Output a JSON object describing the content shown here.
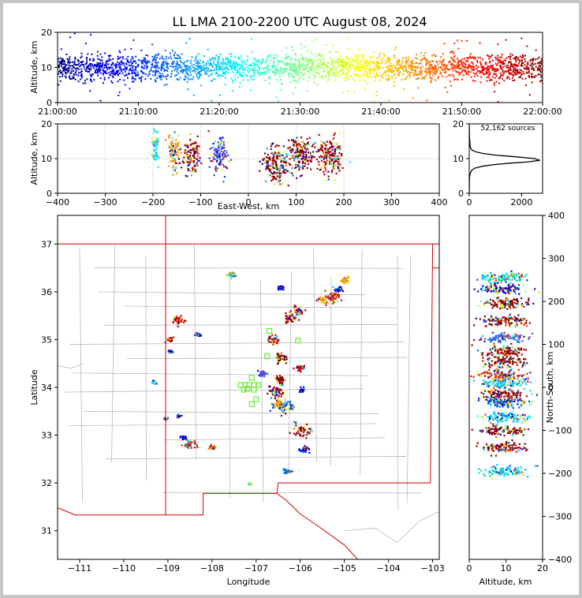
{
  "window": {
    "frame_color": "#c6c6c6"
  },
  "chart_data": [
    {
      "type": "scatter",
      "panel": "time-altitude",
      "title": "LL LMA 2100-2200 UTC August 08, 2024",
      "ylabel": "Altitude, km",
      "xlabel": "",
      "xlim": [
        "21:00:00",
        "22:00:00"
      ],
      "ylim": [
        0,
        20
      ],
      "xticks": [
        "21:00:00",
        "21:10:00",
        "21:20:00",
        "21:30:00",
        "21:40:00",
        "21:50:00",
        "22:00:00"
      ],
      "yticks": [
        0,
        10,
        20
      ],
      "colormap": "jet (by time)",
      "altitude_band_km": [
        5,
        15
      ]
    },
    {
      "type": "scatter",
      "panel": "east-west-altitude",
      "xlabel": "East-West, km",
      "ylabel": "Altitude, km",
      "xlim": [
        -400,
        400
      ],
      "ylim": [
        0,
        20
      ],
      "xticks": [
        -400,
        -300,
        -200,
        -100,
        0,
        100,
        200,
        300,
        400
      ],
      "yticks": [
        0,
        10,
        20
      ],
      "grid": true,
      "clusters": [
        {
          "ew_km": -195,
          "width_km": 10,
          "alt_km": 13,
          "color": "#00e5ff"
        },
        {
          "ew_km": -155,
          "width_km": 15,
          "alt_km": 12,
          "color": "#ff8c00"
        },
        {
          "ew_km": -120,
          "width_km": 20,
          "alt_km": 11,
          "color": "#a00000"
        },
        {
          "ew_km": -60,
          "width_km": 20,
          "alt_km": 11,
          "color": "#4040ff"
        },
        {
          "ew_km": 60,
          "width_km": 30,
          "alt_km": 8,
          "color": "#8b0000"
        },
        {
          "ew_km": 110,
          "width_km": 30,
          "alt_km": 11,
          "color": "#8b0000"
        },
        {
          "ew_km": 170,
          "width_km": 30,
          "alt_km": 11,
          "color": "#b00000"
        }
      ]
    },
    {
      "type": "line",
      "panel": "altitude-histogram",
      "annotation": "52,162 sources",
      "xlim": [
        0,
        2800
      ],
      "ylim": [
        0,
        20
      ],
      "xticks": [
        0,
        2000
      ],
      "yticks": [
        0,
        10,
        20
      ],
      "x": [
        0,
        10,
        30,
        80,
        200,
        500,
        1000,
        1600,
        2200,
        2700,
        2500,
        1800,
        1000,
        500,
        220,
        100,
        50,
        30,
        20,
        10,
        5,
        0
      ],
      "y": [
        0,
        4.5,
        5.5,
        6.5,
        7.2,
        7.8,
        8.3,
        8.7,
        9.0,
        9.5,
        10.0,
        10.5,
        11.0,
        11.5,
        12.0,
        12.5,
        13.0,
        14.0,
        15.0,
        16.0,
        18.0,
        20.0
      ]
    },
    {
      "type": "map",
      "panel": "plan-view",
      "xlabel": "Longitude",
      "ylabel": "Latitude",
      "xlim": [
        -111.5,
        -102.85
      ],
      "ylim": [
        30.4,
        37.6
      ],
      "xticks": [
        -111,
        -110,
        -109,
        -108,
        -107,
        -106,
        -105,
        -104,
        -103
      ],
      "yticks": [
        31,
        32,
        33,
        34,
        35,
        36,
        37
      ],
      "state_border_color": "#d00000",
      "county_border_color": "#b0b0b0",
      "station_color": "#66ee33",
      "stations": [
        [
          -107.35,
          34.05
        ],
        [
          -107.25,
          34.05
        ],
        [
          -107.2,
          33.97
        ],
        [
          -107.15,
          34.05
        ],
        [
          -107.1,
          34.2
        ],
        [
          -107.05,
          34.05
        ],
        [
          -107.05,
          33.95
        ],
        [
          -106.95,
          34.05
        ],
        [
          -107.1,
          33.65
        ],
        [
          -107.0,
          33.75
        ],
        [
          -106.75,
          34.65
        ],
        [
          -106.7,
          35.18
        ],
        [
          -106.05,
          34.98
        ],
        [
          -107.28,
          33.95
        ]
      ],
      "clusters": [
        {
          "lon": -107.55,
          "lat": 36.35,
          "r": 0.08,
          "color": "#8bc34a"
        },
        {
          "lon": -106.45,
          "lat": 36.08,
          "r": 0.07,
          "color": "#0000cc"
        },
        {
          "lon": -105.0,
          "lat": 36.25,
          "r": 0.1,
          "color": "#ffaa00"
        },
        {
          "lon": -105.25,
          "lat": 35.9,
          "r": 0.15,
          "color": "#cc2200"
        },
        {
          "lon": -105.15,
          "lat": 36.05,
          "r": 0.1,
          "color": "#0000cc"
        },
        {
          "lon": -105.5,
          "lat": 35.82,
          "r": 0.1,
          "color": "#ffaa00"
        },
        {
          "lon": -106.05,
          "lat": 35.6,
          "r": 0.12,
          "color": "#b00000"
        },
        {
          "lon": -106.2,
          "lat": 35.45,
          "r": 0.14,
          "color": "#a00000"
        },
        {
          "lon": -106.6,
          "lat": 35.0,
          "r": 0.12,
          "color": "#cc2200"
        },
        {
          "lon": -106.45,
          "lat": 34.6,
          "r": 0.14,
          "color": "#8b0000"
        },
        {
          "lon": -106.85,
          "lat": 34.3,
          "r": 0.08,
          "color": "#4444ff"
        },
        {
          "lon": -106.0,
          "lat": 34.4,
          "r": 0.1,
          "color": "#cc0000"
        },
        {
          "lon": -106.45,
          "lat": 34.15,
          "r": 0.12,
          "color": "#8b0000"
        },
        {
          "lon": -106.55,
          "lat": 33.9,
          "r": 0.18,
          "color": "#8b0000"
        },
        {
          "lon": -106.35,
          "lat": 33.6,
          "r": 0.2,
          "color": "#0044cc"
        },
        {
          "lon": -106.5,
          "lat": 33.65,
          "r": 0.1,
          "color": "#ffaa00"
        },
        {
          "lon": -105.95,
          "lat": 33.95,
          "r": 0.06,
          "color": "#0000cc"
        },
        {
          "lon": -105.95,
          "lat": 33.1,
          "r": 0.18,
          "color": "#a00000"
        },
        {
          "lon": -105.9,
          "lat": 32.7,
          "r": 0.1,
          "color": "#0000cc"
        },
        {
          "lon": -106.3,
          "lat": 32.25,
          "r": 0.08,
          "color": "#0066ff"
        },
        {
          "lon": -108.75,
          "lat": 35.4,
          "r": 0.12,
          "color": "#cc0000"
        },
        {
          "lon": -108.95,
          "lat": 35.0,
          "r": 0.07,
          "color": "#cc0000"
        },
        {
          "lon": -108.95,
          "lat": 34.75,
          "r": 0.05,
          "color": "#0000cc"
        },
        {
          "lon": -108.3,
          "lat": 35.1,
          "r": 0.05,
          "color": "#0000cc"
        },
        {
          "lon": -109.3,
          "lat": 34.1,
          "r": 0.06,
          "color": "#00ccff"
        },
        {
          "lon": -108.75,
          "lat": 33.4,
          "r": 0.05,
          "color": "#0000cc"
        },
        {
          "lon": -108.5,
          "lat": 32.8,
          "r": 0.14,
          "color": "#cc2200"
        },
        {
          "lon": -108.65,
          "lat": 32.95,
          "r": 0.06,
          "color": "#0000cc"
        },
        {
          "lon": -108.0,
          "lat": 32.75,
          "r": 0.08,
          "color": "#ff8800"
        },
        {
          "lon": -109.05,
          "lat": 33.35,
          "r": 0.04,
          "color": "#8b0000"
        },
        {
          "lon": -107.15,
          "lat": 31.98,
          "r": 0.03,
          "color": "#66ee33"
        }
      ]
    },
    {
      "type": "scatter",
      "panel": "altitude-north-south",
      "xlabel": "Altitude, km",
      "ylabel": "North-South, km",
      "xlim": [
        0,
        20
      ],
      "ylim": [
        -400,
        400
      ],
      "xticks": [
        0,
        10,
        20
      ],
      "yticks": [
        -400,
        -300,
        -200,
        -100,
        0,
        100,
        200,
        300,
        400
      ],
      "bands": [
        {
          "ns_km": 255,
          "color": "#00ddcc"
        },
        {
          "ns_km": 230,
          "color": "#0000cc"
        },
        {
          "ns_km": 195,
          "color": "#8b0000"
        },
        {
          "ns_km": 155,
          "color": "#8b0000"
        },
        {
          "ns_km": 115,
          "color": "#3366ff"
        },
        {
          "ns_km": 85,
          "color": "#a00000"
        },
        {
          "ns_km": 60,
          "color": "#8b0000"
        },
        {
          "ns_km": 30,
          "color": "#cc2200"
        },
        {
          "ns_km": 10,
          "color": "#00ccff"
        },
        {
          "ns_km": -15,
          "color": "#8b0000"
        },
        {
          "ns_km": -35,
          "color": "#0044cc"
        },
        {
          "ns_km": -70,
          "color": "#00ddff"
        },
        {
          "ns_km": -100,
          "color": "#8b0000"
        },
        {
          "ns_km": -140,
          "color": "#a00000"
        },
        {
          "ns_km": -195,
          "color": "#00ccff"
        }
      ]
    }
  ]
}
